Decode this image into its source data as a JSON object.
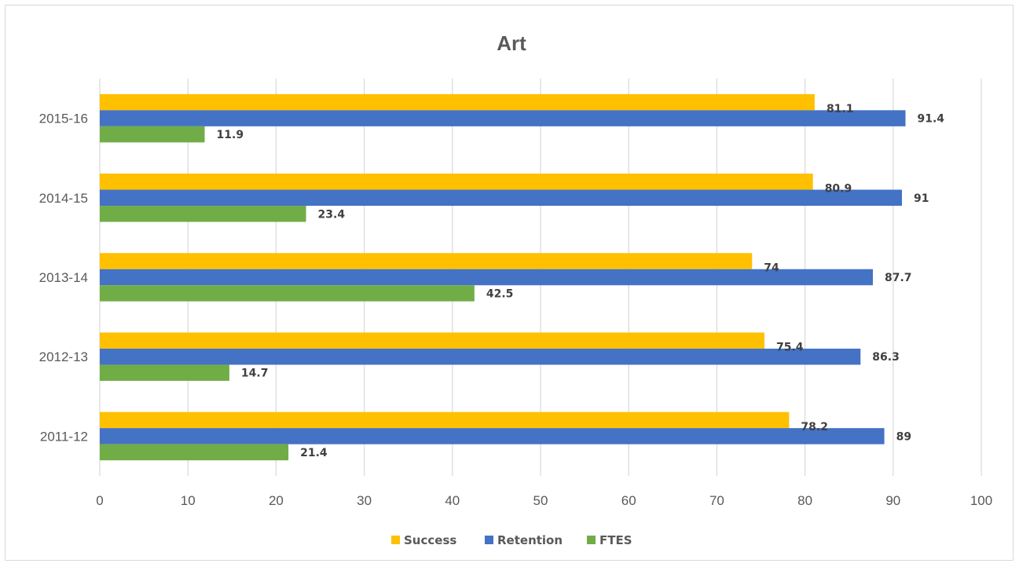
{
  "chart_data": {
    "type": "bar",
    "orientation": "horizontal",
    "title": "Art",
    "xlabel": "",
    "ylabel": "",
    "categories": [
      "2011-12",
      "2012-13",
      "2013-14",
      "2014-15",
      "2015-16"
    ],
    "series": [
      {
        "name": "Success",
        "color": "#FFC000",
        "values": [
          78.2,
          75.4,
          74,
          80.9,
          81.1
        ]
      },
      {
        "name": "Retention",
        "color": "#4472C4",
        "values": [
          89,
          86.3,
          87.7,
          91,
          91.4
        ]
      },
      {
        "name": "FTES",
        "color": "#70AD47",
        "values": [
          21.4,
          14.7,
          42.5,
          23.4,
          11.9
        ]
      }
    ],
    "xlim": [
      0,
      100
    ],
    "x_ticks": [
      0,
      10,
      20,
      30,
      40,
      50,
      60,
      70,
      80,
      90,
      100
    ],
    "grid": "vertical",
    "legend": "bottom",
    "data_labels": true
  }
}
